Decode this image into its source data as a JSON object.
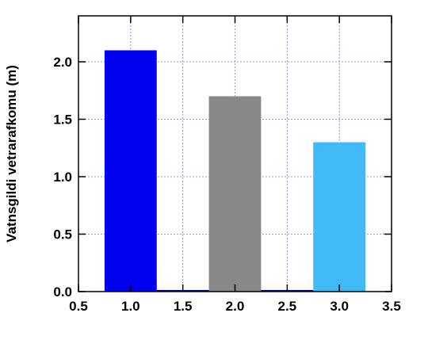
{
  "chart_data": {
    "type": "bar",
    "ylabel": "Vatnsgildi vetrarafkomu (m)",
    "xlabel": "",
    "xlim": [
      0.5,
      3.5
    ],
    "ylim": [
      0.0,
      2.4
    ],
    "xticks": [
      0.5,
      1.0,
      1.5,
      2.0,
      2.5,
      3.0,
      3.5
    ],
    "xtick_labels": [
      "0.5",
      "1.0",
      "1.5",
      "2.0",
      "2.5",
      "3.0",
      "3.5"
    ],
    "yticks": [
      0.0,
      0.5,
      1.0,
      1.5,
      2.0
    ],
    "ytick_labels": [
      "0.0",
      "0.5",
      "1.0",
      "1.5",
      "2.0"
    ],
    "grid": true,
    "bar_width": 0.5,
    "bars": [
      {
        "x": 1.0,
        "value": 2.1,
        "color": "#0000ee"
      },
      {
        "x": 1.5,
        "value": 0.0,
        "color": "#000080"
      },
      {
        "x": 2.0,
        "value": 1.7,
        "color": "#888888"
      },
      {
        "x": 2.5,
        "value": 0.0,
        "color": "#000080"
      },
      {
        "x": 3.0,
        "value": 1.3,
        "color": "#40bbf5"
      }
    ],
    "grid_color": "#9999dd"
  }
}
